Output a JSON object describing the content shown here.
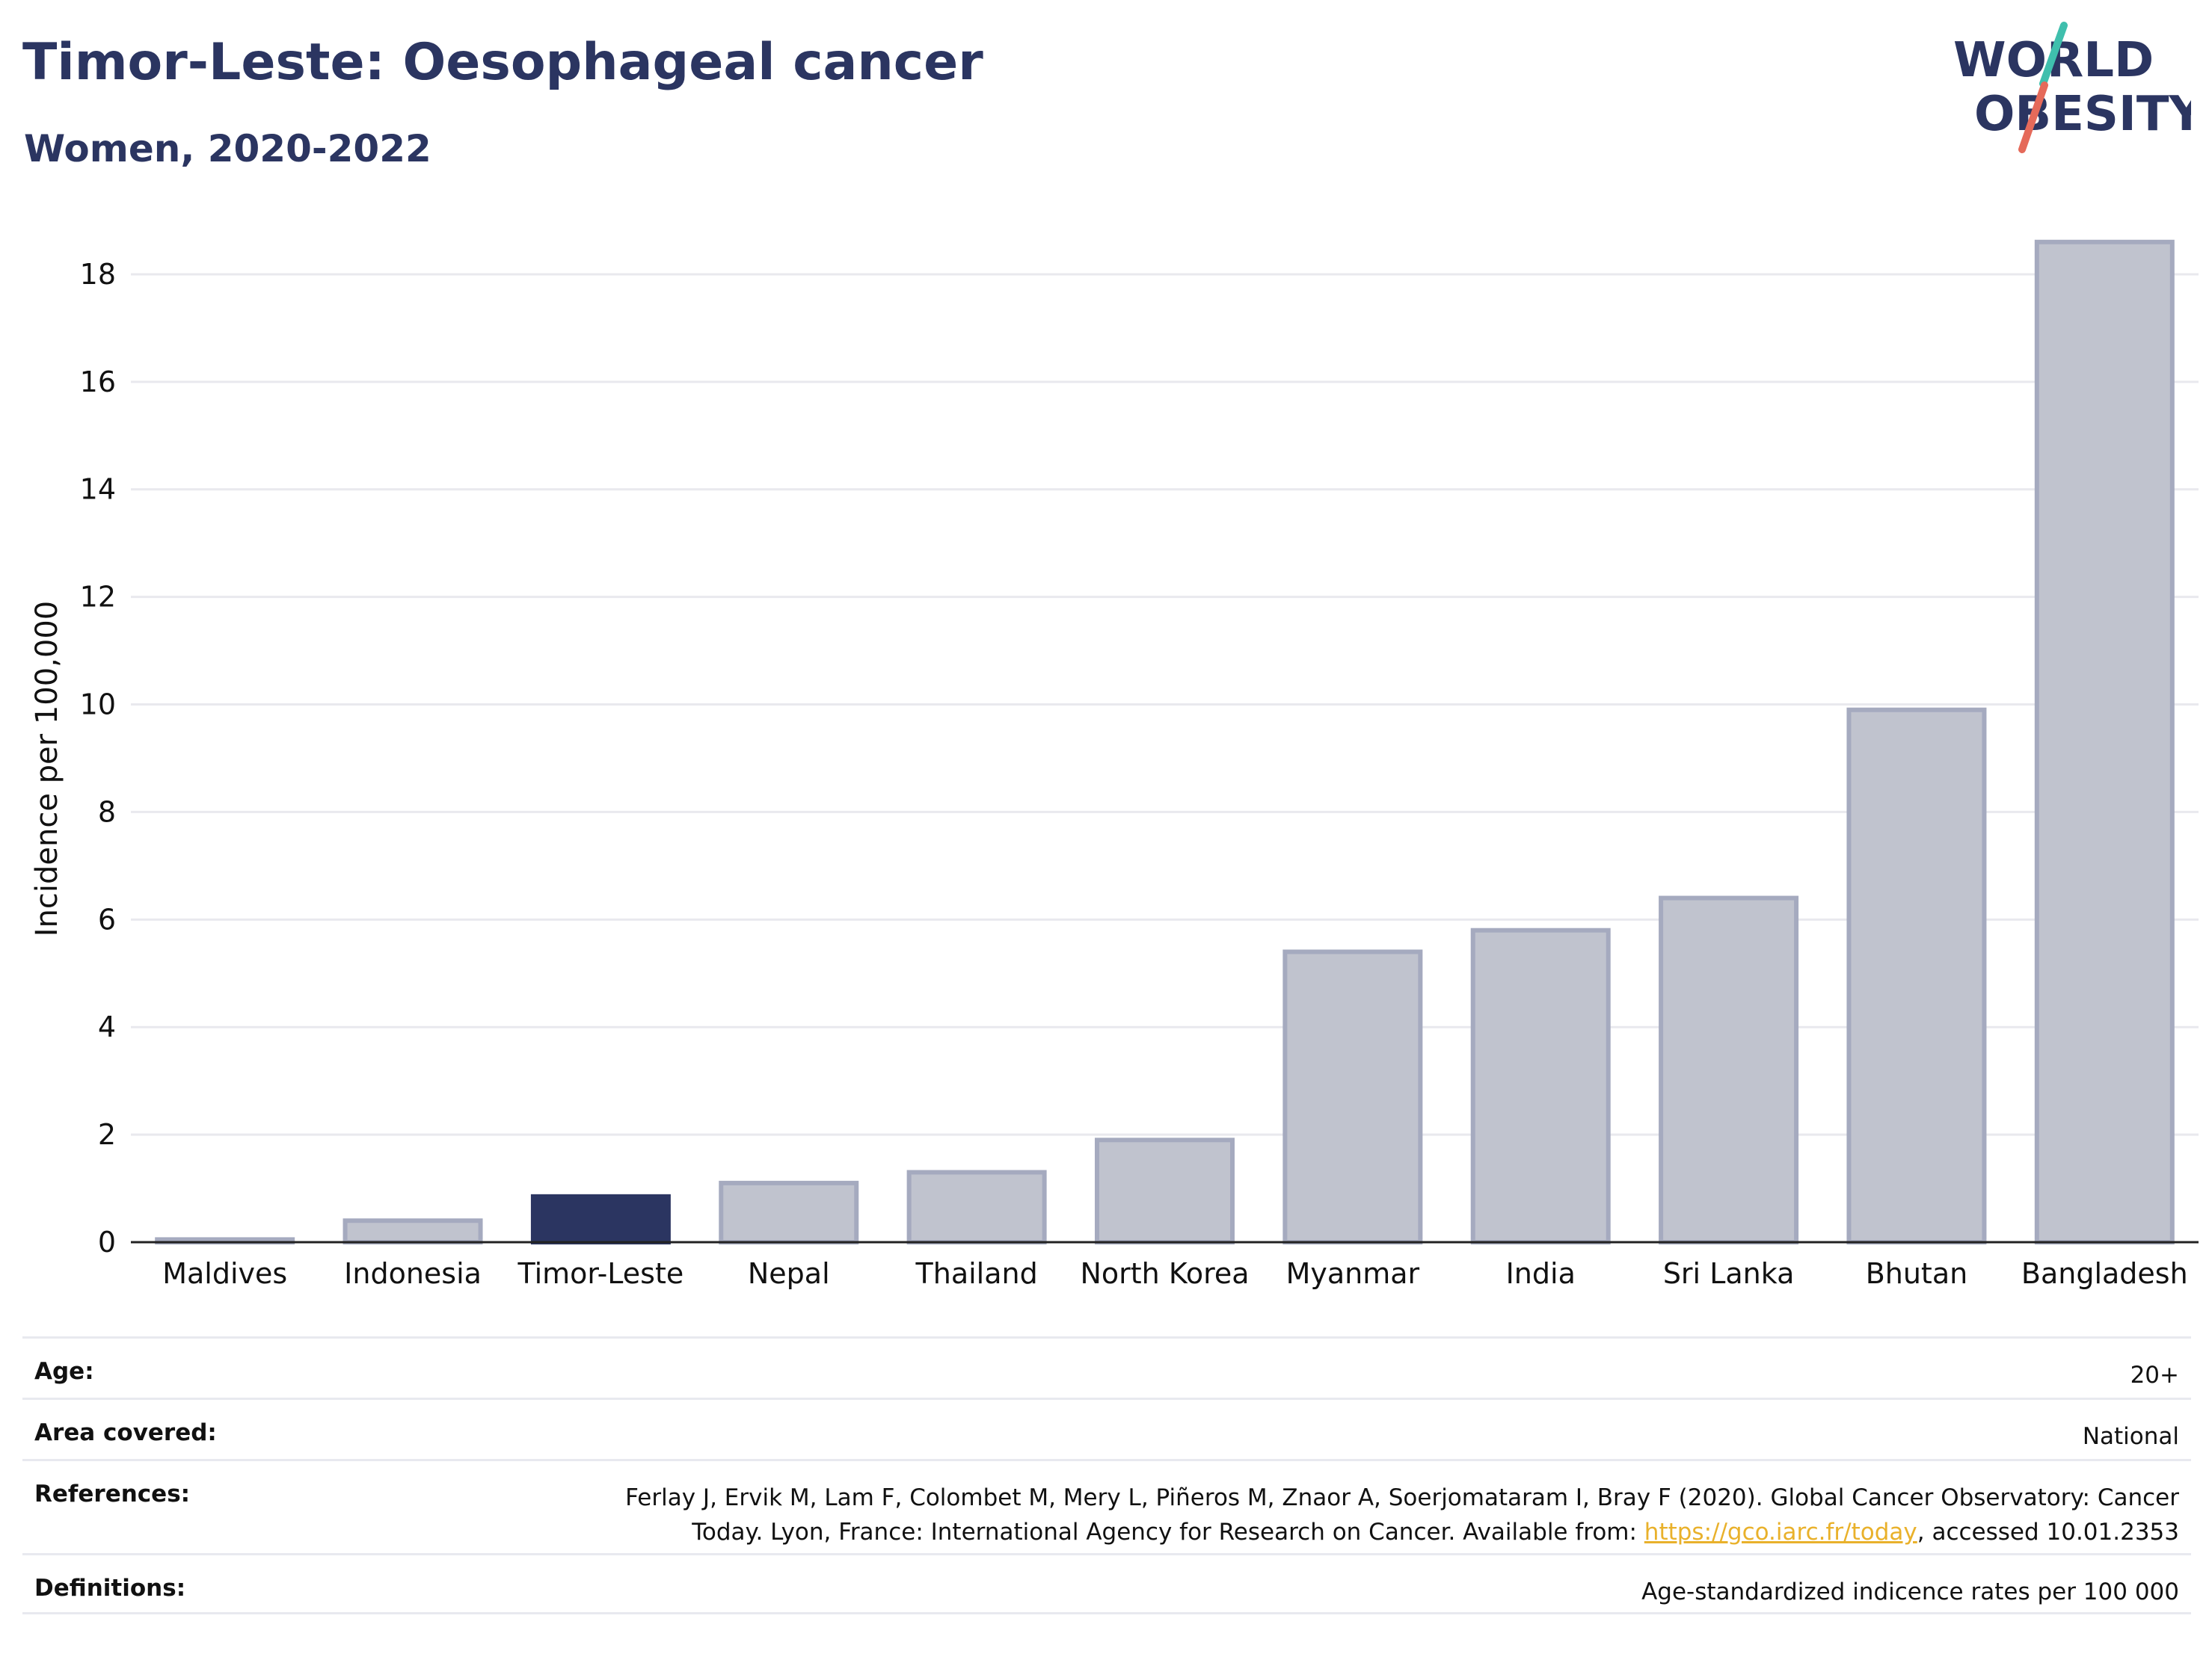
{
  "header": {
    "title": "Timor-Leste: Oesophageal cancer",
    "subtitle": "Women, 2020-2022"
  },
  "logo": {
    "line1": "WORLD",
    "line2": "OBESITY",
    "text_color": "#2b3561",
    "slash_top_color": "#3fbfad",
    "slash_bottom_color": "#e56a5a"
  },
  "colors": {
    "highlight": "#2b3561",
    "other": "#c0c3ce",
    "other_stroke": "#a5aabf",
    "grid": "#e9e9ee",
    "link": "#e9b12b"
  },
  "chart_data": {
    "type": "bar",
    "categories": [
      "Maldives",
      "Indonesia",
      "Timor-Leste",
      "Nepal",
      "Thailand",
      "North Korea",
      "Myanmar",
      "India",
      "Sri Lanka",
      "Bhutan",
      "Bangladesh"
    ],
    "values": [
      0.05,
      0.4,
      0.85,
      1.1,
      1.3,
      1.9,
      5.4,
      5.8,
      6.4,
      9.9,
      18.6
    ],
    "highlight": "Timor-Leste",
    "ylabel": "Incidence per 100,000",
    "xlabel": "",
    "ylim": [
      0,
      19
    ],
    "yticks": [
      0,
      2,
      4,
      6,
      8,
      10,
      12,
      14,
      16,
      18
    ],
    "grid": true
  },
  "info": {
    "age_label": "Age:",
    "age_value": "20+",
    "area_label": "Area covered:",
    "area_value": "National",
    "references_label": "References:",
    "references_line1": "Ferlay J, Ervik M, Lam F, Colombet M, Mery L, Piñeros M, Znaor A, Soerjomataram I, Bray F (2020). Global Cancer Observatory: Cancer",
    "references_line2_pre": "Today. Lyon, France: International Agency for Research on Cancer. Available from: ",
    "references_link": "https://gco.iarc.fr/today",
    "references_line2_post": ", accessed 10.01.2353",
    "definitions_label": "Definitions:",
    "definitions_value": "Age-standardized indicence rates per 100 000"
  }
}
